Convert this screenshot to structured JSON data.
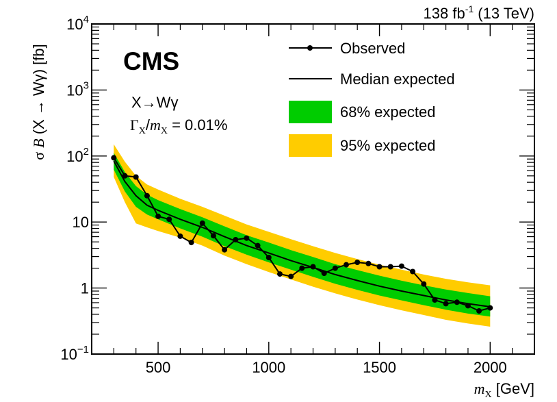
{
  "chart_data": {
    "type": "line",
    "x_scale": "linear",
    "y_scale": "log",
    "xlim": [
      200,
      2200
    ],
    "ylim": [
      0.1,
      10000
    ],
    "xticks": [
      500,
      1000,
      1500,
      2000
    ],
    "yticks": [
      {
        "value": 0.1,
        "base": "10",
        "exp": "−1"
      },
      {
        "value": 1,
        "base": "1",
        "exp": ""
      },
      {
        "value": 10,
        "base": "10",
        "exp": ""
      },
      {
        "value": 100,
        "base": "10",
        "exp": "2"
      },
      {
        "value": 1000,
        "base": "10",
        "exp": "3"
      },
      {
        "value": 10000,
        "base": "10",
        "exp": "4"
      }
    ],
    "xlabel": {
      "var": "m",
      "sub": "X",
      "unit": " [GeV]"
    },
    "ylabel": {
      "sigma": "σ",
      "br": "B",
      "proc": "  (X → Wγ) [fb]"
    },
    "lumi_label": {
      "pre": "138 fb",
      "sup": "-1",
      "post": " (13 TeV)"
    },
    "experiment": "CMS",
    "process_label": "X→Wγ",
    "width_label": {
      "gamma": "Γ",
      "sub1": "X",
      "slash": "/",
      "m": "m",
      "sub2": "X",
      "value": " = 0.01%"
    },
    "legend": {
      "placement": "top-right",
      "observed": "Observed",
      "median": "Median expected",
      "band68": "68% expected",
      "band95": "95% expected"
    },
    "colors": {
      "band68": "#00cc00",
      "band95": "#ffcc00",
      "line": "#000000"
    },
    "series": [
      {
        "name": "Observed",
        "x": [
          300,
          350,
          400,
          450,
          500,
          550,
          600,
          650,
          700,
          750,
          800,
          850,
          900,
          950,
          1000,
          1050,
          1100,
          1150,
          1200,
          1250,
          1300,
          1350,
          1400,
          1450,
          1500,
          1550,
          1600,
          1650,
          1700,
          1750,
          1800,
          1850,
          1900,
          1950,
          2000
        ],
        "y": [
          94,
          50,
          48,
          25,
          12.2,
          11,
          6.1,
          4.9,
          9.6,
          6.2,
          3.8,
          5.4,
          5.7,
          4.4,
          2.9,
          1.63,
          1.5,
          2.0,
          2.1,
          1.67,
          2.0,
          2.25,
          2.45,
          2.35,
          2.1,
          2.1,
          2.15,
          1.78,
          1.15,
          0.66,
          0.58,
          0.61,
          0.54,
          0.45,
          0.5
        ]
      },
      {
        "name": "Median expected",
        "x": [
          300,
          350,
          400,
          450,
          500,
          600,
          700,
          800,
          900,
          1000,
          1100,
          1200,
          1300,
          1400,
          1500,
          1600,
          1700,
          1800,
          1900,
          2000
        ],
        "y": [
          84,
          41,
          25,
          18,
          15,
          11,
          8.3,
          6.0,
          4.4,
          3.4,
          2.6,
          2.05,
          1.6,
          1.3,
          1.07,
          0.9,
          0.77,
          0.66,
          0.58,
          0.52
        ]
      },
      {
        "name": "68% expected",
        "x": [
          300,
          350,
          400,
          450,
          500,
          600,
          700,
          800,
          900,
          1000,
          1100,
          1200,
          1300,
          1400,
          1500,
          1600,
          1700,
          1800,
          1900,
          2000
        ],
        "low": [
          62,
          29,
          17,
          13,
          11,
          8.0,
          6.0,
          4.3,
          3.2,
          2.45,
          1.9,
          1.48,
          1.16,
          0.94,
          0.77,
          0.65,
          0.55,
          0.47,
          0.41,
          0.37
        ],
        "high": [
          112,
          57,
          35,
          26,
          21.5,
          15.7,
          11.8,
          8.6,
          6.3,
          4.9,
          3.75,
          2.95,
          2.3,
          1.87,
          1.54,
          1.29,
          1.1,
          0.95,
          0.84,
          0.75
        ]
      },
      {
        "name": "95% expected",
        "x": [
          300,
          350,
          400,
          450,
          500,
          600,
          700,
          800,
          900,
          1000,
          1100,
          1200,
          1300,
          1400,
          1500,
          1600,
          1700,
          1800,
          1900,
          2000
        ],
        "low": [
          48,
          20,
          9.5,
          8.3,
          7.3,
          5.8,
          4.4,
          3.1,
          2.3,
          1.75,
          1.35,
          1.05,
          0.83,
          0.67,
          0.55,
          0.46,
          0.39,
          0.33,
          0.29,
          0.26
        ],
        "high": [
          150,
          82,
          50,
          37,
          31,
          22.5,
          17,
          12.5,
          9.2,
          7.1,
          5.5,
          4.3,
          3.4,
          2.75,
          2.26,
          1.9,
          1.6,
          1.38,
          1.22,
          1.1
        ]
      }
    ]
  }
}
